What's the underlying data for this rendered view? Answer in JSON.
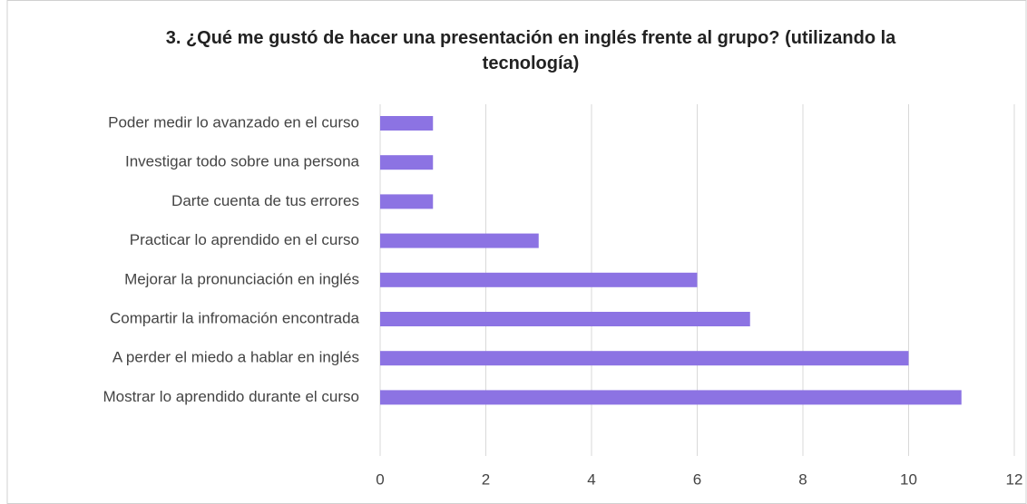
{
  "chart_data": {
    "type": "hbar",
    "title": "3. ¿Qué me gustó de hacer una presentación en inglés frente al grupo? (utilizando la tecnología)",
    "categories": [
      "Poder medir lo avanzado en el curso",
      "Investigar todo sobre una persona",
      "Darte cuenta de tus errores",
      "Practicar lo aprendido en el curso",
      "Mejorar la pronunciación en inglés",
      "Compartir la infromación encontrada",
      "A perder el miedo a hablar en inglés",
      "Mostrar lo aprendido durante el curso"
    ],
    "values": [
      1,
      1,
      1,
      3,
      6,
      7,
      10,
      11
    ],
    "color": "#8c73e3",
    "xlim": [
      0,
      12
    ],
    "xticks": [
      0,
      2,
      4,
      6,
      8,
      10,
      12
    ],
    "grid": true
  }
}
